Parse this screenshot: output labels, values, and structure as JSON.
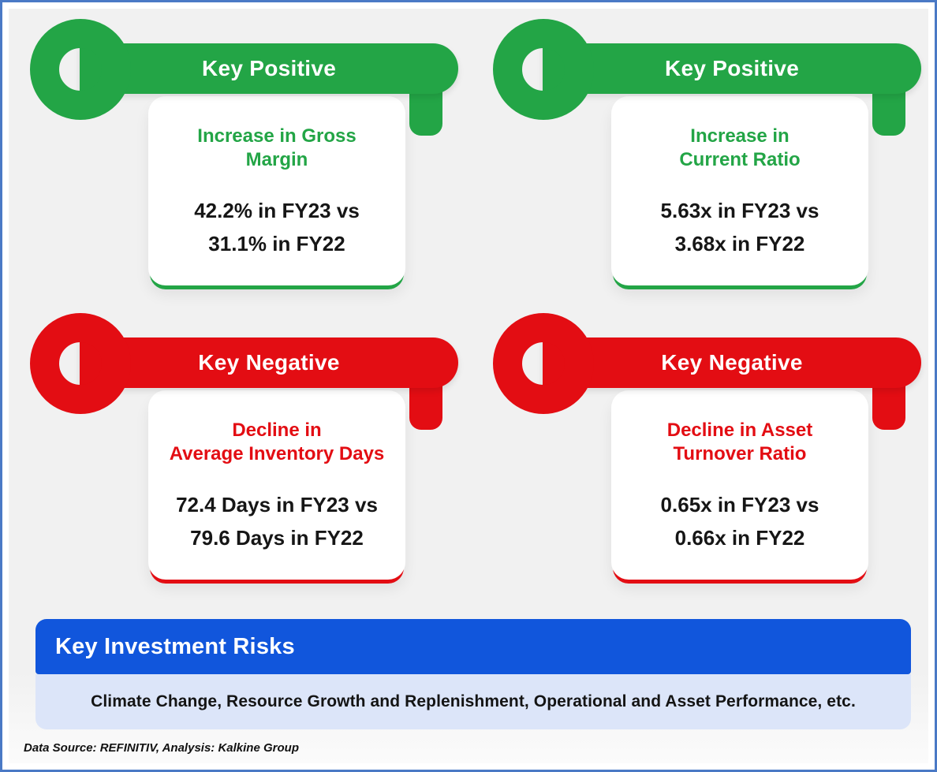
{
  "colors": {
    "positive": "#23a546",
    "negative": "#e30d13",
    "risk_header_bg": "#1156dc",
    "risk_body_bg": "#dce5f9",
    "frame_border": "#4a79c5",
    "canvas_bg": "#f1f1f1"
  },
  "cards": [
    {
      "type": "positive",
      "key_label": "Key Positive",
      "title_lines": [
        "Increase in Gross",
        "Margin"
      ],
      "metric_lines": [
        "42.2% in FY23 vs",
        "31.1% in FY22"
      ]
    },
    {
      "type": "positive",
      "key_label": "Key Positive",
      "title_lines": [
        "Increase in",
        "Current Ratio"
      ],
      "metric_lines": [
        "5.63x in FY23 vs",
        "3.68x in FY22"
      ]
    },
    {
      "type": "negative",
      "key_label": "Key Negative",
      "title_lines": [
        "Decline in",
        "Average Inventory Days"
      ],
      "metric_lines": [
        "72.4 Days in FY23 vs",
        "79.6 Days in FY22"
      ]
    },
    {
      "type": "negative",
      "key_label": "Key Negative",
      "title_lines": [
        "Decline in Asset",
        "Turnover Ratio"
      ],
      "metric_lines": [
        "0.65x in FY23 vs",
        "0.66x in FY22"
      ]
    }
  ],
  "risks": {
    "header": "Key Investment Risks",
    "body": "Climate Change, Resource Growth and Replenishment, Operational and Asset Performance, etc."
  },
  "footer": {
    "source": "Data Source: REFINITIV, Analysis: Kalkine Group"
  }
}
